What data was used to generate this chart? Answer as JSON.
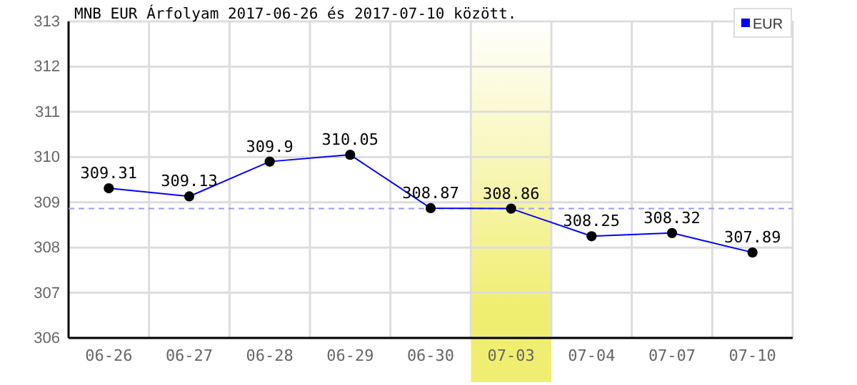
{
  "chart_data": {
    "type": "line",
    "title": "MNB EUR Árfolyam 2017-06-26 és 2017-07-10 között.",
    "categories": [
      "06-26",
      "06-27",
      "06-28",
      "06-29",
      "06-30",
      "07-03",
      "07-04",
      "07-07",
      "07-10"
    ],
    "series": [
      {
        "name": "EUR",
        "color": "#0000ff",
        "values": [
          309.31,
          309.13,
          309.9,
          310.05,
          308.87,
          308.86,
          308.25,
          308.32,
          307.89
        ]
      }
    ],
    "ylim": [
      306,
      313
    ],
    "yticks": [
      306,
      307,
      308,
      309,
      310,
      311,
      312,
      313
    ],
    "grid": true,
    "legend": "top right",
    "marker": "circle",
    "line_style": "solid",
    "data_labels": true,
    "ref_lines": [
      {
        "axis": "y",
        "value": 308.86,
        "color": "#9999ff",
        "line_style": "dashed"
      }
    ],
    "bands": [
      {
        "axis": "x",
        "from": "07-03",
        "to": "07-03",
        "color": "#f0ee70"
      }
    ]
  }
}
